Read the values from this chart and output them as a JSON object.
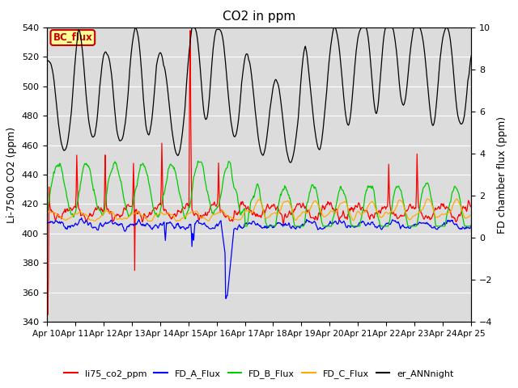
{
  "title": "CO2 in ppm",
  "ylabel_left": "Li-7500 CO2 (ppm)",
  "ylabel_right": "FD chamber flux (ppm)",
  "ylim_left": [
    340,
    540
  ],
  "ylim_right": [
    -4,
    10
  ],
  "yticks_left": [
    340,
    360,
    380,
    400,
    420,
    440,
    460,
    480,
    500,
    520,
    540
  ],
  "yticks_right": [
    -4,
    -2,
    0,
    2,
    4,
    6,
    8,
    10
  ],
  "xtick_labels": [
    "Apr 10",
    "Apr 11",
    "Apr 12",
    "Apr 13",
    "Apr 14",
    "Apr 15",
    "Apr 16",
    "Apr 17",
    "Apr 18",
    "Apr 19",
    "Apr 20",
    "Apr 21",
    "Apr 22",
    "Apr 23",
    "Apr 24",
    "Apr 25"
  ],
  "colors": {
    "li75": "#ff0000",
    "FD_A": "#0000ff",
    "FD_B": "#00cc00",
    "FD_C": "#ffaa00",
    "er_ANN": "#000000"
  },
  "legend_labels": [
    "li75_co2_ppm",
    "FD_A_Flux",
    "FD_B_Flux",
    "FD_C_Flux",
    "er_ANNnight"
  ],
  "annotation_text": "BC_flux",
  "annotation_color": "#cc0000",
  "annotation_bg": "#ffff99",
  "background_color": "#dcdcdc",
  "grid_color": "#ffffff"
}
